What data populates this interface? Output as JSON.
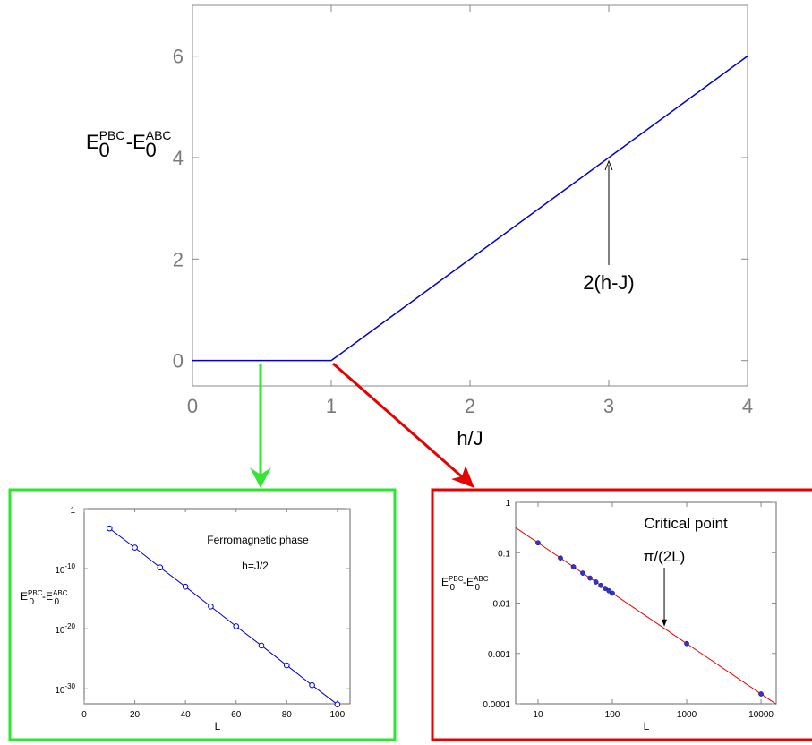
{
  "chart_data": [
    {
      "type": "line",
      "xlabel": "h/J",
      "ylabel": "E0PBC - E0ABC",
      "ylabel_parts": {
        "e1": "E",
        "sub1": "0",
        "sup1": "PBC",
        "dash": "-",
        "e2": "E",
        "sub2": "0",
        "sup2": "ABC"
      },
      "xlim": [
        0,
        4
      ],
      "ylim": [
        -0.5,
        7
      ],
      "xticks": [
        "0",
        "1",
        "2",
        "3",
        "4"
      ],
      "yticks": [
        "0",
        "2",
        "4",
        "6"
      ],
      "grid": false,
      "series": [
        {
          "color": "#0000cc",
          "x": [
            0,
            1,
            4
          ],
          "y": [
            0,
            0,
            6
          ]
        }
      ],
      "annotations": [
        {
          "text": "2(h-J)",
          "arrow_to": {
            "x": 3,
            "y": 4
          }
        }
      ]
    },
    {
      "type": "line",
      "title": "Ferromagnetic phase",
      "subtitle": "h=J/2",
      "xlabel": "L",
      "ylabel": "E0PBC-E0ABC",
      "ylabel_parts": {
        "e1": "E",
        "sub1": "0",
        "sup1": "PBC",
        "dash": "-",
        "e2": "E",
        "sub2": "0",
        "sup2": "ABC"
      },
      "xlim": [
        0,
        105
      ],
      "yscale": "log",
      "ylim_exponent": [
        -32.5,
        0
      ],
      "xticks": [
        "0",
        "20",
        "40",
        "60",
        "80",
        "100"
      ],
      "yticks": [
        {
          "base": "1",
          "exp": ""
        },
        {
          "base": "10",
          "exp": "-10"
        },
        {
          "base": "10",
          "exp": "-20"
        },
        {
          "base": "10",
          "exp": "-30"
        }
      ],
      "border_color": "#2ee62e",
      "series": [
        {
          "color": "#0000cc",
          "marker": "open-circle",
          "x": [
            10,
            20,
            30,
            40,
            50,
            60,
            70,
            80,
            90,
            100
          ],
          "y_exponent": [
            -3.3,
            -6.5,
            -9.8,
            -13.0,
            -16.3,
            -19.6,
            -22.8,
            -26.1,
            -29.4,
            -32.6
          ]
        }
      ]
    },
    {
      "type": "line",
      "title": "Critical point",
      "annotation": "π/(2L)",
      "xlabel": "L",
      "ylabel": "E0PBC-E0ABC",
      "ylabel_parts": {
        "e1": "E",
        "sub1": "0",
        "sup1": "PBC",
        "dash": "-",
        "e2": "E",
        "sub2": "0",
        "sup2": "ABC"
      },
      "xscale": "log",
      "yscale": "log",
      "xlim": [
        5,
        16000
      ],
      "ylim": [
        0.0001,
        1
      ],
      "xticks": [
        "10",
        "100",
        "1000",
        "10000"
      ],
      "yticks": [
        "1",
        "0.1",
        "0.01",
        "0.001",
        "0.0001"
      ],
      "border_color": "#e60000",
      "series": [
        {
          "color": "#3333cc",
          "marker": "filled-circle",
          "x": [
            10,
            20,
            30,
            40,
            50,
            60,
            70,
            80,
            90,
            100,
            1000,
            10000
          ],
          "y": [
            0.157,
            0.0785,
            0.0524,
            0.0393,
            0.0314,
            0.0262,
            0.0224,
            0.0196,
            0.0175,
            0.0157,
            0.00157,
            0.000157
          ]
        },
        {
          "color": "#e60000",
          "x": [
            5,
            16000
          ],
          "y": [
            0.314,
            9.82e-05
          ]
        }
      ],
      "annotation_arrow_to": {
        "x": 500,
        "y": 0.00314
      }
    }
  ],
  "connectors": [
    {
      "color": "#33e633"
    },
    {
      "color": "#e60000"
    }
  ]
}
